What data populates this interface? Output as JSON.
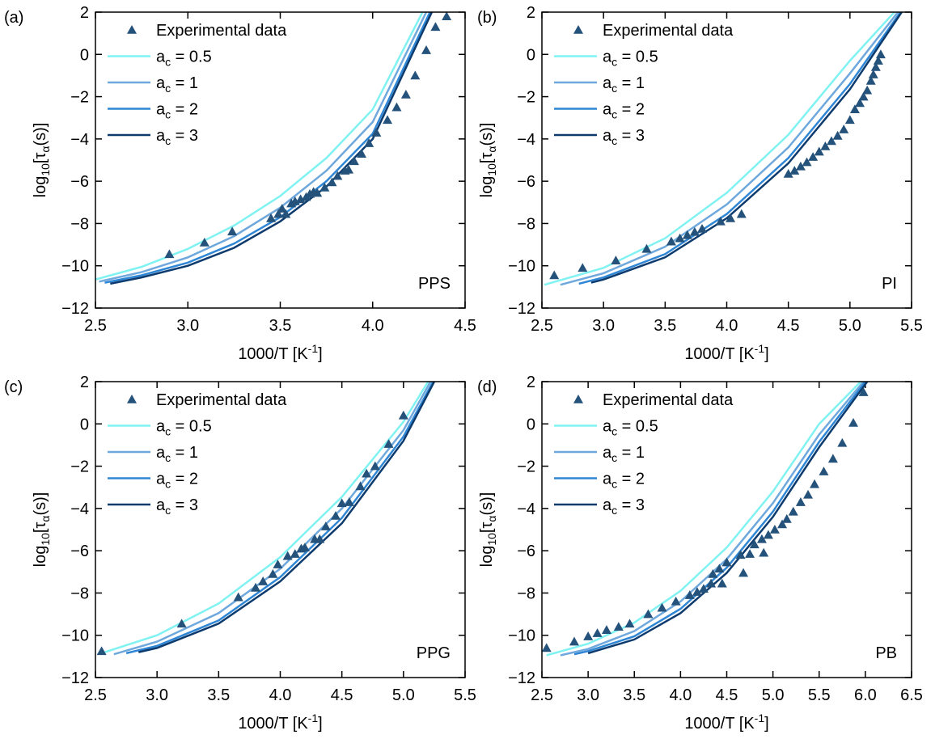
{
  "chart_data": [
    {
      "type": "scatter",
      "panel_label": "(a)",
      "annotation": "PPS",
      "x_label": [
        "1000/T [K",
        {
          "text": "-1",
          "sup": true
        },
        "]"
      ],
      "y_label": [
        "log",
        {
          "text": "10",
          "sub": true
        },
        "[τ",
        {
          "text": "α",
          "sub": true
        },
        "(s)]"
      ],
      "xlim": [
        2.5,
        4.5
      ],
      "ylim": [
        -12,
        2
      ],
      "xticks": [
        2.5,
        {
          "value": 3,
          "label": "3.0"
        },
        3.5,
        {
          "value": 4,
          "label": "4.0"
        },
        4.5
      ],
      "yticks": [
        {
          "value": -12,
          "label": "−12"
        },
        {
          "value": -10,
          "label": "−10"
        },
        {
          "value": -8,
          "label": "−8"
        },
        {
          "value": -6,
          "label": "−6"
        },
        {
          "value": -4,
          "label": "−4"
        },
        {
          "value": -2,
          "label": "−2"
        },
        0,
        2
      ],
      "series": [
        {
          "name": "Experimental data",
          "kind": "scatter",
          "color": "#24527a",
          "x": [
            2.9,
            3.09,
            3.24,
            3.45,
            3.49,
            3.51,
            3.53,
            3.56,
            3.58,
            3.61,
            3.64,
            3.66,
            3.68,
            3.7,
            3.74,
            3.78,
            3.81,
            3.85,
            3.87,
            3.9,
            3.94,
            3.98,
            4.02,
            4.08,
            4.13,
            4.18,
            4.23,
            4.29,
            4.34,
            4.4
          ],
          "values": [
            -9.45,
            -8.9,
            -8.38,
            -7.75,
            -7.55,
            -7.3,
            -7.55,
            -7.05,
            -6.95,
            -6.85,
            -6.75,
            -6.6,
            -6.5,
            -6.55,
            -6.3,
            -6.05,
            -5.75,
            -5.5,
            -5.45,
            -5.05,
            -4.7,
            -4.2,
            -3.7,
            -3.1,
            -2.5,
            -1.9,
            -1.0,
            0.2,
            1.3,
            1.8
          ]
        },
        {
          "name": [
            "a",
            {
              "text": "c",
              "sub": true
            },
            " = 0.5"
          ],
          "kind": "line",
          "color": "#80f2f2",
          "x": [
            2.5,
            2.75,
            3.0,
            3.25,
            3.5,
            3.75,
            4.0,
            4.27
          ],
          "values": [
            -10.65,
            -10.05,
            -9.2,
            -8.1,
            -6.7,
            -4.9,
            -2.6,
            2
          ]
        },
        {
          "name": [
            "a",
            {
              "text": "c",
              "sub": true
            },
            " = 1"
          ],
          "kind": "line",
          "color": "#6fa8dc",
          "x": [
            2.52,
            2.75,
            3.0,
            3.25,
            3.5,
            3.75,
            4.0,
            4.29
          ],
          "values": [
            -10.75,
            -10.3,
            -9.6,
            -8.6,
            -7.25,
            -5.5,
            -3.2,
            2
          ]
        },
        {
          "name": [
            "a",
            {
              "text": "c",
              "sub": true
            },
            " = 2"
          ],
          "kind": "line",
          "color": "#2f86d4",
          "x": [
            2.55,
            2.75,
            3.0,
            3.25,
            3.5,
            3.75,
            4.0,
            4.31
          ],
          "values": [
            -10.8,
            -10.45,
            -9.85,
            -8.95,
            -7.7,
            -6.0,
            -3.75,
            2
          ]
        },
        {
          "name": [
            "a",
            {
              "text": "c",
              "sub": true
            },
            " = 3"
          ],
          "kind": "line",
          "color": "#0d3b6e",
          "x": [
            2.58,
            2.75,
            3.0,
            3.25,
            3.5,
            3.75,
            4.0,
            4.32
          ],
          "values": [
            -10.85,
            -10.55,
            -10.0,
            -9.15,
            -7.9,
            -6.25,
            -4.0,
            2
          ]
        }
      ]
    },
    {
      "type": "scatter",
      "panel_label": "(b)",
      "annotation": "PI",
      "x_label": [
        "1000/T [K",
        {
          "text": "-1",
          "sup": true
        },
        "]"
      ],
      "y_label": [
        "log",
        {
          "text": "10",
          "sub": true
        },
        "[τ",
        {
          "text": "α",
          "sub": true
        },
        "(s)]"
      ],
      "xlim": [
        2.5,
        5.5
      ],
      "ylim": [
        -12,
        2
      ],
      "xticks": [
        2.5,
        {
          "value": 3,
          "label": "3.0"
        },
        3.5,
        {
          "value": 4,
          "label": "4.0"
        },
        4.5,
        {
          "value": 5,
          "label": "5.0"
        },
        5.5
      ],
      "yticks": [
        {
          "value": -12,
          "label": "−12"
        },
        {
          "value": -10,
          "label": "−10"
        },
        {
          "value": -8,
          "label": "−8"
        },
        {
          "value": -6,
          "label": "−6"
        },
        {
          "value": -4,
          "label": "−4"
        },
        {
          "value": -2,
          "label": "−2"
        },
        0,
        2
      ],
      "series": [
        {
          "name": "Experimental data",
          "kind": "scatter",
          "color": "#24527a",
          "x": [
            2.6,
            2.83,
            3.1,
            3.35,
            3.55,
            3.62,
            3.68,
            3.74,
            3.8,
            3.95,
            4.03,
            4.12,
            4.5,
            4.55,
            4.6,
            4.65,
            4.7,
            4.75,
            4.8,
            4.85,
            4.9,
            4.95,
            5.0,
            5.04,
            5.08,
            5.11,
            5.14,
            5.17,
            5.19,
            5.21,
            5.23,
            5.25
          ],
          "values": [
            -10.45,
            -10.1,
            -9.75,
            -9.2,
            -8.85,
            -8.7,
            -8.55,
            -8.4,
            -8.25,
            -7.9,
            -7.75,
            -7.55,
            -5.65,
            -5.5,
            -5.3,
            -5.1,
            -4.85,
            -4.6,
            -4.35,
            -4.1,
            -3.85,
            -3.55,
            -3.1,
            -2.6,
            -2.3,
            -2.0,
            -1.7,
            -1.25,
            -0.95,
            -0.6,
            -0.3,
            0.0
          ]
        },
        {
          "name": [
            "a",
            {
              "text": "c",
              "sub": true
            },
            " = 0.5"
          ],
          "kind": "line",
          "color": "#80f2f2",
          "x": [
            2.52,
            3.0,
            3.5,
            4.0,
            4.5,
            5.0,
            5.36
          ],
          "values": [
            -10.9,
            -10.1,
            -8.7,
            -6.55,
            -3.8,
            -0.3,
            2
          ]
        },
        {
          "name": [
            "a",
            {
              "text": "c",
              "sub": true
            },
            " = 1"
          ],
          "kind": "line",
          "color": "#6fa8dc",
          "x": [
            2.65,
            3.0,
            3.5,
            4.0,
            4.5,
            5.0,
            5.39
          ],
          "values": [
            -10.9,
            -10.35,
            -9.1,
            -7.1,
            -4.4,
            -0.9,
            2
          ]
        },
        {
          "name": [
            "a",
            {
              "text": "c",
              "sub": true
            },
            " = 2"
          ],
          "kind": "line",
          "color": "#2f86d4",
          "x": [
            2.8,
            3.0,
            3.5,
            4.0,
            4.5,
            5.0,
            5.41
          ],
          "values": [
            -10.85,
            -10.55,
            -9.45,
            -7.55,
            -4.9,
            -1.4,
            2
          ]
        },
        {
          "name": [
            "a",
            {
              "text": "c",
              "sub": true
            },
            " = 3"
          ],
          "kind": "line",
          "color": "#0d3b6e",
          "x": [
            2.9,
            3.0,
            3.5,
            4.0,
            4.5,
            5.0,
            5.42
          ],
          "values": [
            -10.8,
            -10.65,
            -9.6,
            -7.75,
            -5.15,
            -1.65,
            2
          ]
        }
      ]
    },
    {
      "type": "scatter",
      "panel_label": "(c)",
      "annotation": "PPG",
      "x_label": [
        "1000/T [K",
        {
          "text": "-1",
          "sup": true
        },
        "]"
      ],
      "y_label": [
        "log",
        {
          "text": "10",
          "sub": true
        },
        "[τ",
        {
          "text": "α",
          "sub": true
        },
        "(s)]"
      ],
      "xlim": [
        2.5,
        5.5
      ],
      "ylim": [
        -12,
        2
      ],
      "xticks": [
        2.5,
        {
          "value": 3,
          "label": "3.0"
        },
        3.5,
        {
          "value": 4,
          "label": "4.0"
        },
        4.5,
        {
          "value": 5,
          "label": "5.0"
        },
        5.5
      ],
      "yticks": [
        {
          "value": -12,
          "label": "−12"
        },
        {
          "value": -10,
          "label": "−10"
        },
        {
          "value": -8,
          "label": "−8"
        },
        {
          "value": -6,
          "label": "−6"
        },
        {
          "value": -4,
          "label": "−4"
        },
        {
          "value": -2,
          "label": "−2"
        },
        0,
        2
      ],
      "series": [
        {
          "name": "Experimental data",
          "kind": "scatter",
          "color": "#24527a",
          "x": [
            2.55,
            3.2,
            3.66,
            3.8,
            3.86,
            3.94,
            3.98,
            4.06,
            4.12,
            4.17,
            4.2,
            4.28,
            4.32,
            4.37,
            4.45,
            4.5,
            4.56,
            4.65,
            4.7,
            4.77,
            4.88,
            5.0
          ],
          "values": [
            -10.75,
            -9.45,
            -8.2,
            -7.75,
            -7.45,
            -7.1,
            -6.65,
            -6.25,
            -6.15,
            -5.9,
            -5.85,
            -5.45,
            -5.45,
            -4.85,
            -4.35,
            -3.75,
            -3.7,
            -2.95,
            -2.35,
            -2.0,
            -0.95,
            0.4
          ]
        },
        {
          "name": [
            "a",
            {
              "text": "c",
              "sub": true
            },
            " = 0.5"
          ],
          "kind": "line",
          "color": "#80f2f2",
          "x": [
            2.55,
            3.0,
            3.5,
            4.0,
            4.5,
            5.0,
            5.2
          ],
          "values": [
            -10.85,
            -10.0,
            -8.5,
            -6.3,
            -3.45,
            0.1,
            2
          ]
        },
        {
          "name": [
            "a",
            {
              "text": "c",
              "sub": true
            },
            " = 1"
          ],
          "kind": "line",
          "color": "#6fa8dc",
          "x": [
            2.65,
            3.0,
            3.5,
            4.0,
            4.5,
            5.0,
            5.22
          ],
          "values": [
            -10.9,
            -10.3,
            -8.95,
            -6.85,
            -4.0,
            -0.3,
            2
          ]
        },
        {
          "name": [
            "a",
            {
              "text": "c",
              "sub": true
            },
            " = 2"
          ],
          "kind": "line",
          "color": "#2f86d4",
          "x": [
            2.75,
            3.0,
            3.5,
            4.0,
            4.5,
            5.0,
            5.24
          ],
          "values": [
            -10.85,
            -10.5,
            -9.3,
            -7.25,
            -4.45,
            -0.6,
            2
          ]
        },
        {
          "name": [
            "a",
            {
              "text": "c",
              "sub": true
            },
            " = 3"
          ],
          "kind": "line",
          "color": "#0d3b6e",
          "x": [
            2.85,
            3.0,
            3.5,
            4.0,
            4.5,
            5.0,
            5.25
          ],
          "values": [
            -10.8,
            -10.6,
            -9.45,
            -7.45,
            -4.7,
            -0.8,
            2
          ]
        }
      ]
    },
    {
      "type": "scatter",
      "panel_label": "(d)",
      "annotation": "PB",
      "x_label": [
        "1000/T [K",
        {
          "text": "-1",
          "sup": true
        },
        "]"
      ],
      "y_label": [
        "log",
        {
          "text": "10",
          "sub": true
        },
        "[τ",
        {
          "text": "α",
          "sub": true
        },
        "(s)]"
      ],
      "xlim": [
        2.5,
        6.5
      ],
      "ylim": [
        -12,
        2
      ],
      "xticks": [
        2.5,
        {
          "value": 3,
          "label": "3.0"
        },
        3.5,
        {
          "value": 4,
          "label": "4.0"
        },
        4.5,
        {
          "value": 5,
          "label": "5.0"
        },
        5.5,
        {
          "value": 6,
          "label": "6.0"
        },
        6.5
      ],
      "yticks": [
        {
          "value": -12,
          "label": "−12"
        },
        {
          "value": -10,
          "label": "−10"
        },
        {
          "value": -8,
          "label": "−8"
        },
        {
          "value": -6,
          "label": "−6"
        },
        {
          "value": -4,
          "label": "−4"
        },
        {
          "value": -2,
          "label": "−2"
        },
        0,
        2
      ],
      "series": [
        {
          "name": "Experimental data",
          "kind": "scatter",
          "color": "#24527a",
          "x": [
            2.55,
            2.85,
            3.0,
            3.1,
            3.2,
            3.33,
            3.45,
            3.65,
            3.8,
            3.95,
            4.1,
            4.18,
            4.25,
            4.33,
            4.35,
            4.42,
            4.5,
            4.45,
            4.65,
            4.68,
            4.75,
            4.8,
            4.88,
            4.9,
            4.95,
            5.02,
            5.1,
            5.15,
            5.22,
            5.3,
            5.38,
            5.45,
            5.55,
            5.65,
            5.75,
            5.87,
            5.98
          ],
          "values": [
            -10.6,
            -10.3,
            -10.05,
            -9.9,
            -9.75,
            -9.6,
            -9.45,
            -9.0,
            -8.7,
            -8.4,
            -8.1,
            -7.95,
            -7.8,
            -7.55,
            -7.1,
            -6.85,
            -6.55,
            -7.55,
            -6.2,
            -7.05,
            -6.15,
            -5.7,
            -5.45,
            -6.1,
            -5.25,
            -5.0,
            -4.75,
            -4.5,
            -4.15,
            -3.7,
            -3.35,
            -2.85,
            -2.25,
            -1.65,
            -0.9,
            0.05,
            1.5
          ]
        },
        {
          "name": [
            "a",
            {
              "text": "c",
              "sub": true
            },
            " = 0.5"
          ],
          "kind": "line",
          "color": "#80f2f2",
          "x": [
            2.55,
            3.0,
            3.5,
            4.0,
            4.5,
            5.0,
            5.5,
            5.95
          ],
          "values": [
            -10.95,
            -10.4,
            -9.4,
            -7.9,
            -5.85,
            -3.2,
            0.0,
            2
          ]
        },
        {
          "name": [
            "a",
            {
              "text": "c",
              "sub": true
            },
            " = 1"
          ],
          "kind": "line",
          "color": "#6fa8dc",
          "x": [
            2.7,
            3.0,
            3.5,
            4.0,
            4.5,
            5.0,
            5.5,
            5.98
          ],
          "values": [
            -10.95,
            -10.65,
            -9.8,
            -8.4,
            -6.4,
            -3.75,
            -0.5,
            2
          ]
        },
        {
          "name": [
            "a",
            {
              "text": "c",
              "sub": true
            },
            " = 2"
          ],
          "kind": "line",
          "color": "#2f86d4",
          "x": [
            2.85,
            3.0,
            3.5,
            4.0,
            4.5,
            5.0,
            5.5,
            6.0
          ],
          "values": [
            -10.9,
            -10.75,
            -10.05,
            -8.75,
            -6.8,
            -4.15,
            -0.85,
            2
          ]
        },
        {
          "name": [
            "a",
            {
              "text": "c",
              "sub": true
            },
            " = 3"
          ],
          "kind": "line",
          "color": "#0d3b6e",
          "x": [
            3.0,
            3.5,
            4.0,
            4.5,
            5.0,
            5.5,
            6.02
          ],
          "values": [
            -10.85,
            -10.2,
            -8.95,
            -7.05,
            -4.4,
            -1.1,
            2
          ]
        }
      ]
    }
  ]
}
